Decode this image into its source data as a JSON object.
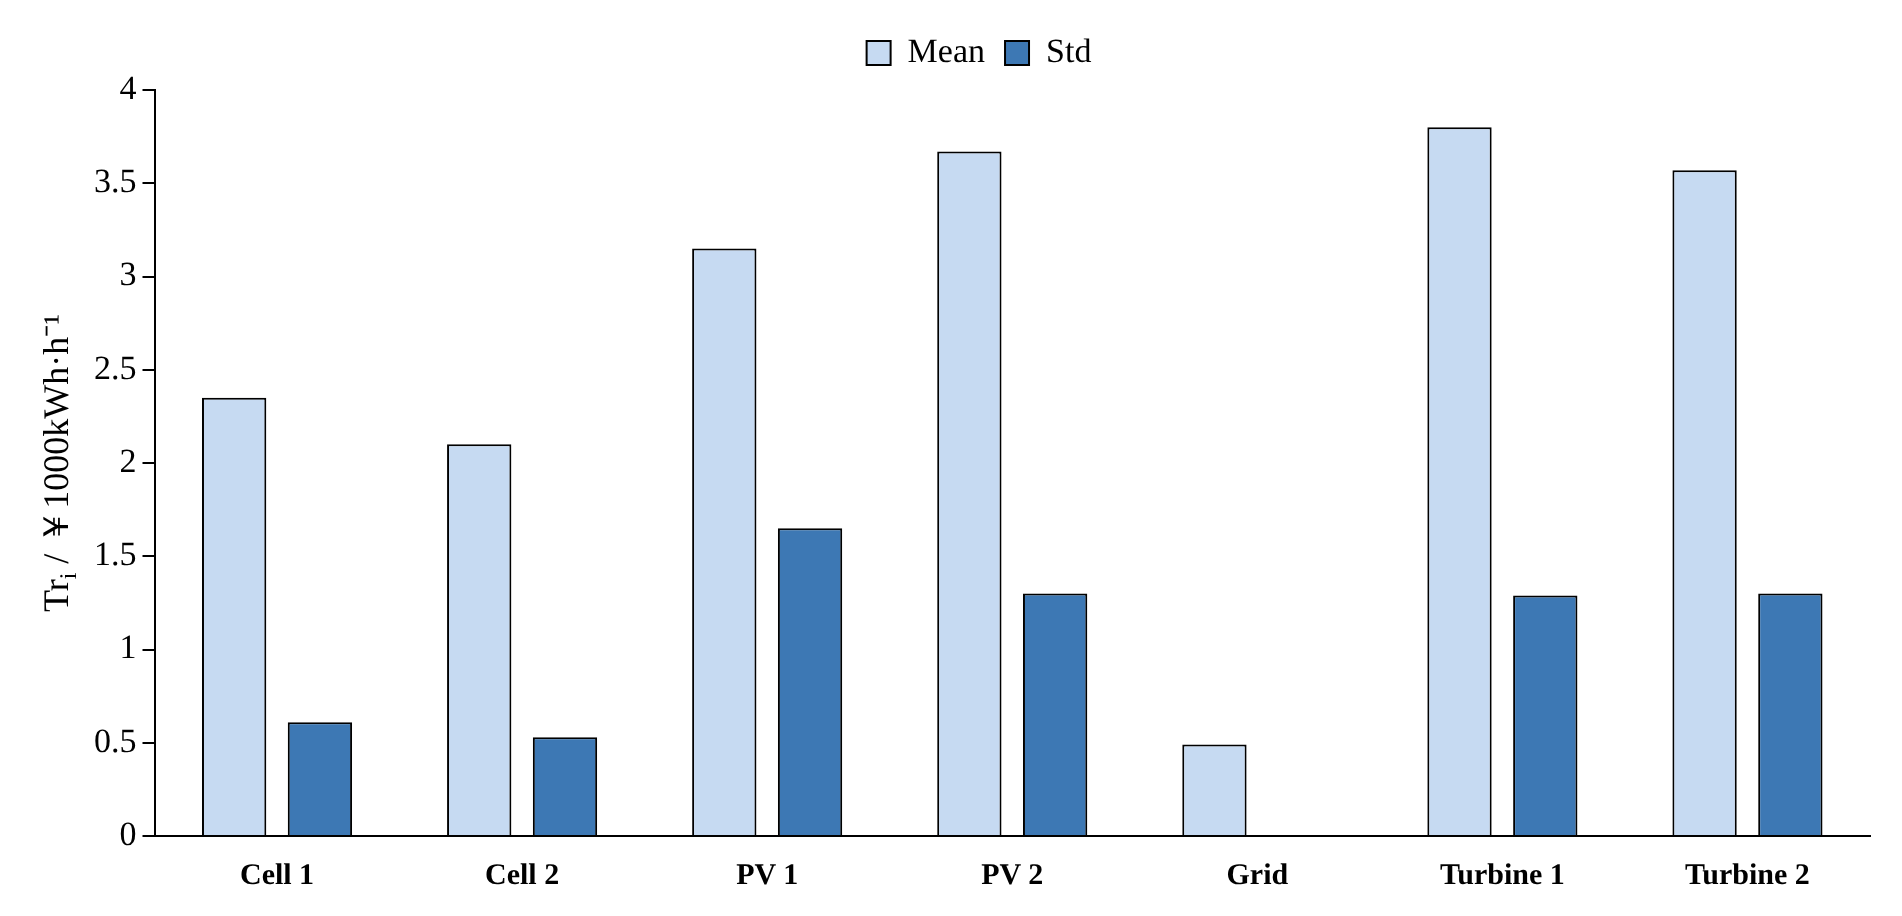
{
  "chart_data": {
    "type": "bar",
    "ylabel": "Tr$_{i}$ / ￥1000kWh·h⁻¹",
    "categories": [
      "Cell 1",
      "Cell 2",
      "PV 1",
      "PV 2",
      "Grid",
      "Turbine 1",
      "Turbine 2"
    ],
    "series": [
      {
        "name": "Mean",
        "color": "#c6daf2",
        "values": [
          2.35,
          2.1,
          3.15,
          3.67,
          0.49,
          3.8,
          3.57
        ]
      },
      {
        "name": "Std",
        "color": "#3d78b4",
        "values": [
          0.61,
          0.53,
          1.65,
          1.3,
          0,
          1.29,
          1.3
        ]
      }
    ],
    "ylim": [
      0,
      4
    ],
    "yticks": [
      0,
      0.5,
      1,
      1.5,
      2,
      2.5,
      3,
      3.5,
      4
    ],
    "grid": false,
    "legend": "top"
  }
}
